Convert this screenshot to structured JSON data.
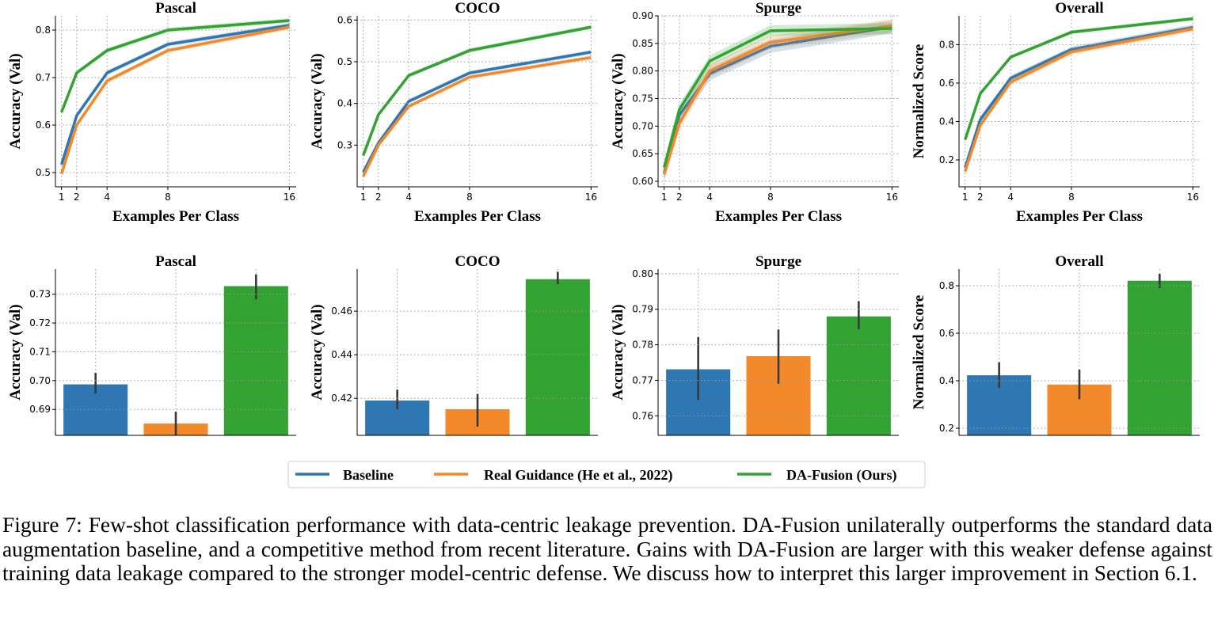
{
  "legend": {
    "items": [
      {
        "label": "Baseline",
        "color": "#2e77b3"
      },
      {
        "label": "Real Guidance (He et al., 2022)",
        "color": "#f2892a"
      },
      {
        "label": "DA-Fusion (Ours)",
        "color": "#32a333"
      }
    ]
  },
  "caption": {
    "label": "Figure 7:",
    "text": "Few-shot classification performance with data-centric leakage prevention. DA-Fusion unilaterally outperforms the standard data augmentation baseline, and a competitive method from recent literature. Gains with DA-Fusion are larger with this weaker defense against training data leakage compared to the stronger model-centric defense. We discuss how to interpret this larger improvement in Section 6.1."
  },
  "chart_data": [
    {
      "type": "line",
      "title": "Pascal",
      "xlabel": "Examples Per Class",
      "ylabel": "Accuracy (Val)",
      "x": [
        1,
        2,
        4,
        8,
        16
      ],
      "xticks": [
        "1",
        "2",
        "4",
        "8",
        "16"
      ],
      "ylim": [
        0.47,
        0.83
      ],
      "yticks": [
        0.5,
        0.6,
        0.7,
        0.8
      ],
      "yticklabels": [
        "0.5",
        "0.6",
        "0.7",
        "0.8"
      ],
      "grid": true,
      "series": [
        {
          "name": "Baseline",
          "color": "#2e77b3",
          "values": [
            0.517,
            0.62,
            0.71,
            0.77,
            0.81
          ],
          "band": 0.005
        },
        {
          "name": "Real Guidance (He et al., 2022)",
          "color": "#f2892a",
          "values": [
            0.497,
            0.6,
            0.693,
            0.757,
            0.806
          ],
          "band": 0.005
        },
        {
          "name": "DA-Fusion (Ours)",
          "color": "#32a333",
          "values": [
            0.627,
            0.71,
            0.757,
            0.8,
            0.82
          ],
          "band": 0.005
        }
      ]
    },
    {
      "type": "line",
      "title": "COCO",
      "xlabel": "Examples Per Class",
      "ylabel": "Accuracy (Val)",
      "x": [
        1,
        2,
        4,
        8,
        16
      ],
      "xticks": [
        "1",
        "2",
        "4",
        "8",
        "16"
      ],
      "ylim": [
        0.2,
        0.61
      ],
      "yticks": [
        0.3,
        0.4,
        0.5,
        0.6
      ],
      "yticklabels": [
        "0.3",
        "0.4",
        "0.5",
        "0.6"
      ],
      "grid": true,
      "series": [
        {
          "name": "Baseline",
          "color": "#2e77b3",
          "values": [
            0.235,
            0.305,
            0.405,
            0.473,
            0.523
          ],
          "band": 0.005
        },
        {
          "name": "Real Guidance (He et al., 2022)",
          "color": "#f2892a",
          "values": [
            0.225,
            0.3,
            0.393,
            0.463,
            0.51
          ],
          "band": 0.005
        },
        {
          "name": "DA-Fusion (Ours)",
          "color": "#32a333",
          "values": [
            0.275,
            0.373,
            0.467,
            0.527,
            0.583
          ],
          "band": 0.005
        }
      ]
    },
    {
      "type": "line",
      "title": "Spurge",
      "xlabel": "Examples Per Class",
      "ylabel": "Accuracy (Val)",
      "x": [
        1,
        2,
        4,
        8,
        16
      ],
      "xticks": [
        "1",
        "2",
        "4",
        "8",
        "16"
      ],
      "ylim": [
        0.59,
        0.9
      ],
      "yticks": [
        0.6,
        0.65,
        0.7,
        0.75,
        0.8,
        0.85,
        0.9
      ],
      "yticklabels": [
        "0.60",
        "0.65",
        "0.70",
        "0.75",
        "0.80",
        "0.85",
        "0.90"
      ],
      "grid": true,
      "series": [
        {
          "name": "Baseline",
          "color": "#2e77b3",
          "values": [
            0.615,
            0.72,
            0.795,
            0.845,
            0.88
          ],
          "band": 0.012
        },
        {
          "name": "Real Guidance (He et al., 2022)",
          "color": "#f2892a",
          "values": [
            0.612,
            0.705,
            0.8,
            0.852,
            0.882
          ],
          "band": 0.012
        },
        {
          "name": "DA-Fusion (Ours)",
          "color": "#32a333",
          "values": [
            0.625,
            0.73,
            0.818,
            0.873,
            0.877
          ],
          "band": 0.01
        }
      ]
    },
    {
      "type": "line",
      "title": "Overall",
      "xlabel": "Examples Per Class",
      "ylabel": "Normalized Score",
      "x": [
        1,
        2,
        4,
        8,
        16
      ],
      "xticks": [
        "1",
        "2",
        "4",
        "8",
        "16"
      ],
      "ylim": [
        0.06,
        0.95
      ],
      "yticks": [
        0.2,
        0.4,
        0.6,
        0.8
      ],
      "yticklabels": [
        "0.2",
        "0.4",
        "0.6",
        "0.8"
      ],
      "grid": true,
      "series": [
        {
          "name": "Baseline",
          "color": "#2e77b3",
          "values": [
            0.16,
            0.41,
            0.625,
            0.775,
            0.89
          ],
          "band": 0.015
        },
        {
          "name": "Real Guidance (He et al., 2022)",
          "color": "#f2892a",
          "values": [
            0.14,
            0.38,
            0.605,
            0.762,
            0.882
          ],
          "band": 0.015
        },
        {
          "name": "DA-Fusion (Ours)",
          "color": "#32a333",
          "values": [
            0.305,
            0.545,
            0.735,
            0.865,
            0.935
          ],
          "band": 0.01
        }
      ]
    },
    {
      "type": "bar",
      "title": "Pascal",
      "ylabel": "Accuracy (Val)",
      "ylim": [
        0.681,
        0.7387
      ],
      "yticks": [
        0.69,
        0.7,
        0.71,
        0.72,
        0.73
      ],
      "yticklabels": [
        "0.69",
        "0.70",
        "0.71",
        "0.72",
        "0.73"
      ],
      "grid": true,
      "series": [
        {
          "name": "Baseline",
          "color": "#2e77b3",
          "value": 0.6987,
          "err": [
            0.6955,
            0.7027
          ]
        },
        {
          "name": "Real Guidance (He et al., 2022)",
          "color": "#f2892a",
          "value": 0.6851,
          "err": [
            0.681,
            0.6892
          ]
        },
        {
          "name": "DA-Fusion (Ours)",
          "color": "#32a333",
          "value": 0.7328,
          "err": [
            0.7282,
            0.7369
          ]
        }
      ]
    },
    {
      "type": "bar",
      "title": "COCO",
      "ylabel": "Accuracy (Val)",
      "ylim": [
        0.403,
        0.4793
      ],
      "yticks": [
        0.42,
        0.44,
        0.46
      ],
      "yticklabels": [
        "0.42",
        "0.44",
        "0.46"
      ],
      "grid": true,
      "series": [
        {
          "name": "Baseline",
          "color": "#2e77b3",
          "value": 0.419,
          "err": [
            0.415,
            0.424
          ]
        },
        {
          "name": "Real Guidance (He et al., 2022)",
          "color": "#f2892a",
          "value": 0.415,
          "err": [
            0.407,
            0.422
          ]
        },
        {
          "name": "DA-Fusion (Ours)",
          "color": "#32a333",
          "value": 0.4747,
          "err": [
            0.4724,
            0.4781
          ]
        }
      ]
    },
    {
      "type": "bar",
      "title": "Spurge",
      "ylabel": "Accuracy (Val)",
      "ylim": [
        0.7545,
        0.8013
      ],
      "yticks": [
        0.76,
        0.77,
        0.78,
        0.79,
        0.8
      ],
      "yticklabels": [
        "0.76",
        "0.77",
        "0.78",
        "0.79",
        "0.80"
      ],
      "grid": true,
      "series": [
        {
          "name": "Baseline",
          "color": "#2e77b3",
          "value": 0.7731,
          "err": [
            0.7645,
            0.7822
          ]
        },
        {
          "name": "Real Guidance (He et al., 2022)",
          "color": "#f2892a",
          "value": 0.7768,
          "err": [
            0.769,
            0.7843
          ]
        },
        {
          "name": "DA-Fusion (Ours)",
          "color": "#32a333",
          "value": 0.788,
          "err": [
            0.7844,
            0.7923
          ]
        }
      ]
    },
    {
      "type": "bar",
      "title": "Overall",
      "ylabel": "Normalized Score",
      "ylim": [
        0.17,
        0.87
      ],
      "yticks": [
        0.2,
        0.4,
        0.6,
        0.8
      ],
      "yticklabels": [
        "0.2",
        "0.4",
        "0.6",
        "0.8"
      ],
      "grid": true,
      "series": [
        {
          "name": "Baseline",
          "color": "#2e77b3",
          "value": 0.423,
          "err": [
            0.37,
            0.478
          ]
        },
        {
          "name": "Real Guidance (He et al., 2022)",
          "color": "#f2892a",
          "value": 0.384,
          "err": [
            0.322,
            0.447
          ]
        },
        {
          "name": "DA-Fusion (Ours)",
          "color": "#32a333",
          "value": 0.821,
          "err": [
            0.79,
            0.85
          ]
        }
      ]
    }
  ]
}
